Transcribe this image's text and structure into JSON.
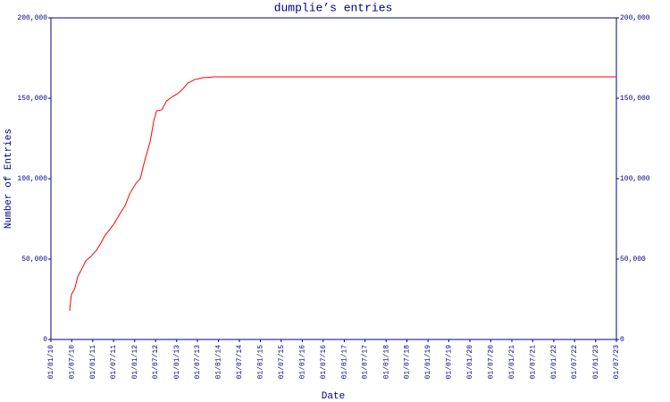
{
  "chart_data": {
    "type": "line",
    "title": "dumplie’s entries",
    "x_label": "Date",
    "y_label": "Number of Entries",
    "x": [
      "2010-06-13",
      "2010-06-28",
      "2010-07-28",
      "2010-08-22",
      "2010-10-01",
      "2010-11-01",
      "2010-12-16",
      "2011-02-03",
      "2011-03-13",
      "2011-04-19",
      "2011-05-28",
      "2011-07-07",
      "2011-08-22",
      "2011-10-10",
      "2011-11-19",
      "2012-01-13",
      "2012-02-19",
      "2012-03-28",
      "2012-05-16",
      "2012-06-16",
      "2012-07-10",
      "2012-08-25",
      "2012-10-04",
      "2012-11-28",
      "2013-01-07",
      "2013-02-22",
      "2013-04-07",
      "2013-06-10",
      "2013-08-19",
      "2013-11-28",
      "2023-07-01"
    ],
    "series": [
      {
        "name": "Entries",
        "color": "#ff0000",
        "values": [
          17800,
          27800,
          31700,
          38900,
          44400,
          48900,
          51700,
          55600,
          60000,
          65000,
          68300,
          72200,
          77800,
          83300,
          90600,
          97200,
          100000,
          111100,
          123300,
          136100,
          142200,
          142800,
          148300,
          151100,
          152800,
          155600,
          159400,
          161700,
          162800,
          163300,
          163300
        ]
      }
    ],
    "xlim": [
      "2010-01-01",
      "2023-07-01"
    ],
    "xticks": [
      {
        "value": "2010-01-01",
        "label": "01/01/10"
      },
      {
        "value": "2010-07-01",
        "label": "01/07/10"
      },
      {
        "value": "2011-01-01",
        "label": "01/01/11"
      },
      {
        "value": "2011-07-01",
        "label": "01/07/11"
      },
      {
        "value": "2012-01-01",
        "label": "01/01/12"
      },
      {
        "value": "2012-07-01",
        "label": "01/07/12"
      },
      {
        "value": "2013-01-01",
        "label": "01/01/13"
      },
      {
        "value": "2013-07-01",
        "label": "01/07/13"
      },
      {
        "value": "2014-01-01",
        "label": "01/01/14"
      },
      {
        "value": "2014-07-01",
        "label": "01/07/14"
      },
      {
        "value": "2015-01-01",
        "label": "01/01/15"
      },
      {
        "value": "2015-07-01",
        "label": "01/07/15"
      },
      {
        "value": "2016-01-01",
        "label": "01/01/16"
      },
      {
        "value": "2016-07-01",
        "label": "01/07/16"
      },
      {
        "value": "2017-01-01",
        "label": "01/01/17"
      },
      {
        "value": "2017-07-01",
        "label": "01/07/17"
      },
      {
        "value": "2018-01-01",
        "label": "01/01/18"
      },
      {
        "value": "2018-07-01",
        "label": "01/07/18"
      },
      {
        "value": "2019-01-01",
        "label": "01/01/19"
      },
      {
        "value": "2019-07-01",
        "label": "01/07/19"
      },
      {
        "value": "2020-01-01",
        "label": "01/01/20"
      },
      {
        "value": "2020-07-01",
        "label": "01/07/20"
      },
      {
        "value": "2021-01-01",
        "label": "01/01/21"
      },
      {
        "value": "2021-07-01",
        "label": "01/07/21"
      },
      {
        "value": "2022-01-01",
        "label": "01/01/22"
      },
      {
        "value": "2022-07-01",
        "label": "01/07/22"
      },
      {
        "value": "2023-01-01",
        "label": "01/01/23"
      },
      {
        "value": "2023-07-01",
        "label": "01/07/23"
      }
    ],
    "ylim": [
      0,
      200000
    ],
    "yticks": [
      0,
      {
        "value": 50000,
        "label": "50,000"
      },
      {
        "value": 100000,
        "label": "100,000"
      },
      {
        "value": 150000,
        "label": "150,000"
      },
      {
        "value": 200000,
        "label": "200,000"
      }
    ],
    "axis_color": "#000080",
    "right_axis_labels": true
  }
}
